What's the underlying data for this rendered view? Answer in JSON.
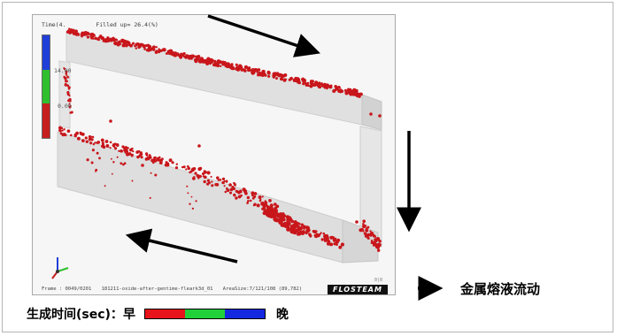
{
  "simulation": {
    "time_text": "Time(4.",
    "filled_text": "Filled up= 26.4(%)",
    "scale_labels": [
      "14.00",
      "0.00"
    ],
    "footer": {
      "frame": "Frame : 0049/0201",
      "case": "181211-oxide-after-gentime-fleark3d_01",
      "area": "AreaSize:7/121/108 (89,782)"
    },
    "brand": "FLOSTEAM",
    "corner_tag": "0|0",
    "scale_colors": [
      "#1f3fd8",
      "#2fbf2f",
      "#c61f1f"
    ],
    "particle_color": "#c8161b",
    "mold_color": "#dcdcdc"
  },
  "legend": {
    "flow_label": "金属熔液流动",
    "time_label": "生成时间(sec)：",
    "early_label": "早",
    "late_label": "晚",
    "time_colors": [
      "#e8141c",
      "#21d13a",
      "#1428e0"
    ]
  }
}
